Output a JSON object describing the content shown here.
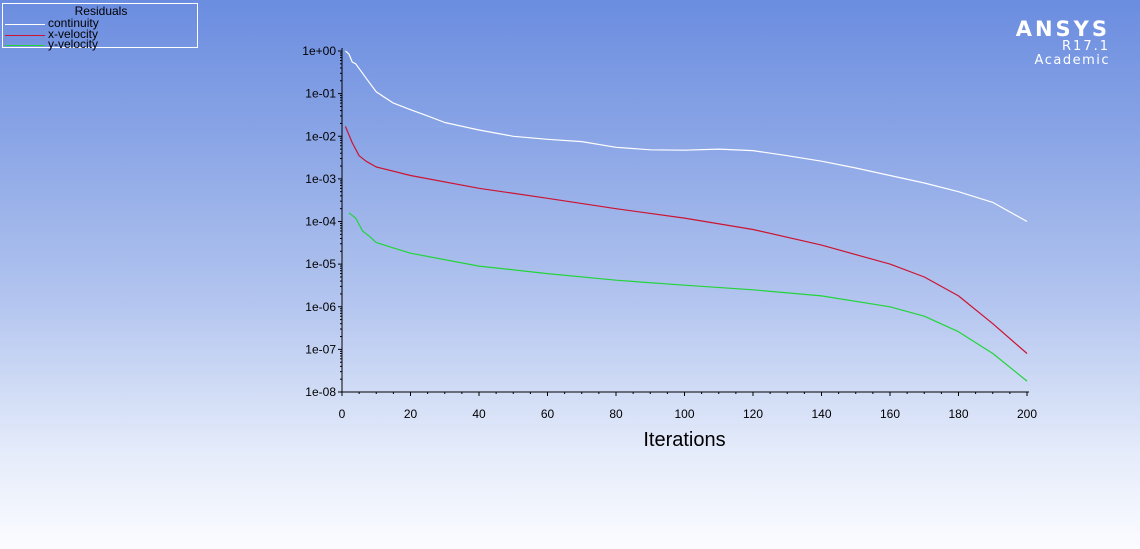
{
  "colors": {
    "continuity": "#ffffff",
    "x_velocity": "#cc1430",
    "y_velocity": "#22d43a",
    "axis": "#000000"
  },
  "brand": {
    "name": "ANSYS",
    "version": "R17.1",
    "edition": "Academic"
  },
  "legend": {
    "title": "Residuals",
    "items": [
      {
        "label": "continuity",
        "color": "#ffffff"
      },
      {
        "label": "x-velocity",
        "color": "#cc1430"
      },
      {
        "label": "y-velocity",
        "color": "#22d43a"
      }
    ]
  },
  "chart_data": {
    "type": "line",
    "title": "",
    "xlabel": "Iterations",
    "ylabel": "",
    "xlim": [
      0,
      200
    ],
    "ylim": [
      1e-08,
      1
    ],
    "yscale": "log",
    "grid": false,
    "legend_position": "top-left",
    "x_ticks": [
      0,
      20,
      40,
      60,
      80,
      100,
      120,
      140,
      160,
      180,
      200
    ],
    "y_ticks": [
      {
        "value": 1,
        "label": "1e+00"
      },
      {
        "value": 0.1,
        "label": "1e-01"
      },
      {
        "value": 0.01,
        "label": "1e-02"
      },
      {
        "value": 0.001,
        "label": "1e-03"
      },
      {
        "value": 0.0001,
        "label": "1e-04"
      },
      {
        "value": 1e-05,
        "label": "1e-05"
      },
      {
        "value": 1e-06,
        "label": "1e-06"
      },
      {
        "value": 1e-07,
        "label": "1e-07"
      },
      {
        "value": 1e-08,
        "label": "1e-08"
      }
    ],
    "series": [
      {
        "name": "continuity",
        "color": "#ffffff",
        "x": [
          1,
          2,
          3,
          4,
          6,
          8,
          10,
          15,
          20,
          25,
          30,
          40,
          50,
          60,
          70,
          80,
          90,
          100,
          110,
          120,
          130,
          140,
          150,
          160,
          170,
          180,
          190,
          200
        ],
        "y": [
          1.0,
          0.85,
          0.55,
          0.5,
          0.3,
          0.18,
          0.11,
          0.06,
          0.042,
          0.03,
          0.021,
          0.014,
          0.01,
          0.0085,
          0.0075,
          0.0055,
          0.0048,
          0.0047,
          0.005,
          0.0046,
          0.0035,
          0.0026,
          0.0018,
          0.0012,
          0.0008,
          0.0005,
          0.00028,
          0.0001
        ]
      },
      {
        "name": "x-velocity",
        "color": "#cc1430",
        "x": [
          1,
          3,
          5,
          7,
          10,
          20,
          40,
          60,
          80,
          100,
          120,
          140,
          160,
          170,
          180,
          190,
          200
        ],
        "y": [
          0.017,
          0.007,
          0.0035,
          0.0026,
          0.0019,
          0.0012,
          0.0006,
          0.00035,
          0.0002,
          0.00012,
          6.5e-05,
          2.8e-05,
          1e-05,
          5e-06,
          1.8e-06,
          4e-07,
          8e-08
        ]
      },
      {
        "name": "y-velocity",
        "color": "#22d43a",
        "x": [
          2,
          4,
          6,
          8,
          10,
          15,
          20,
          40,
          60,
          80,
          100,
          120,
          140,
          160,
          170,
          180,
          190,
          200
        ],
        "y": [
          0.00016,
          0.00012,
          6e-05,
          4.5e-05,
          3.2e-05,
          2.4e-05,
          1.8e-05,
          9e-06,
          6e-06,
          4.2e-06,
          3.2e-06,
          2.5e-06,
          1.8e-06,
          1e-06,
          6e-07,
          2.6e-07,
          8e-08,
          1.8e-08
        ]
      }
    ]
  }
}
